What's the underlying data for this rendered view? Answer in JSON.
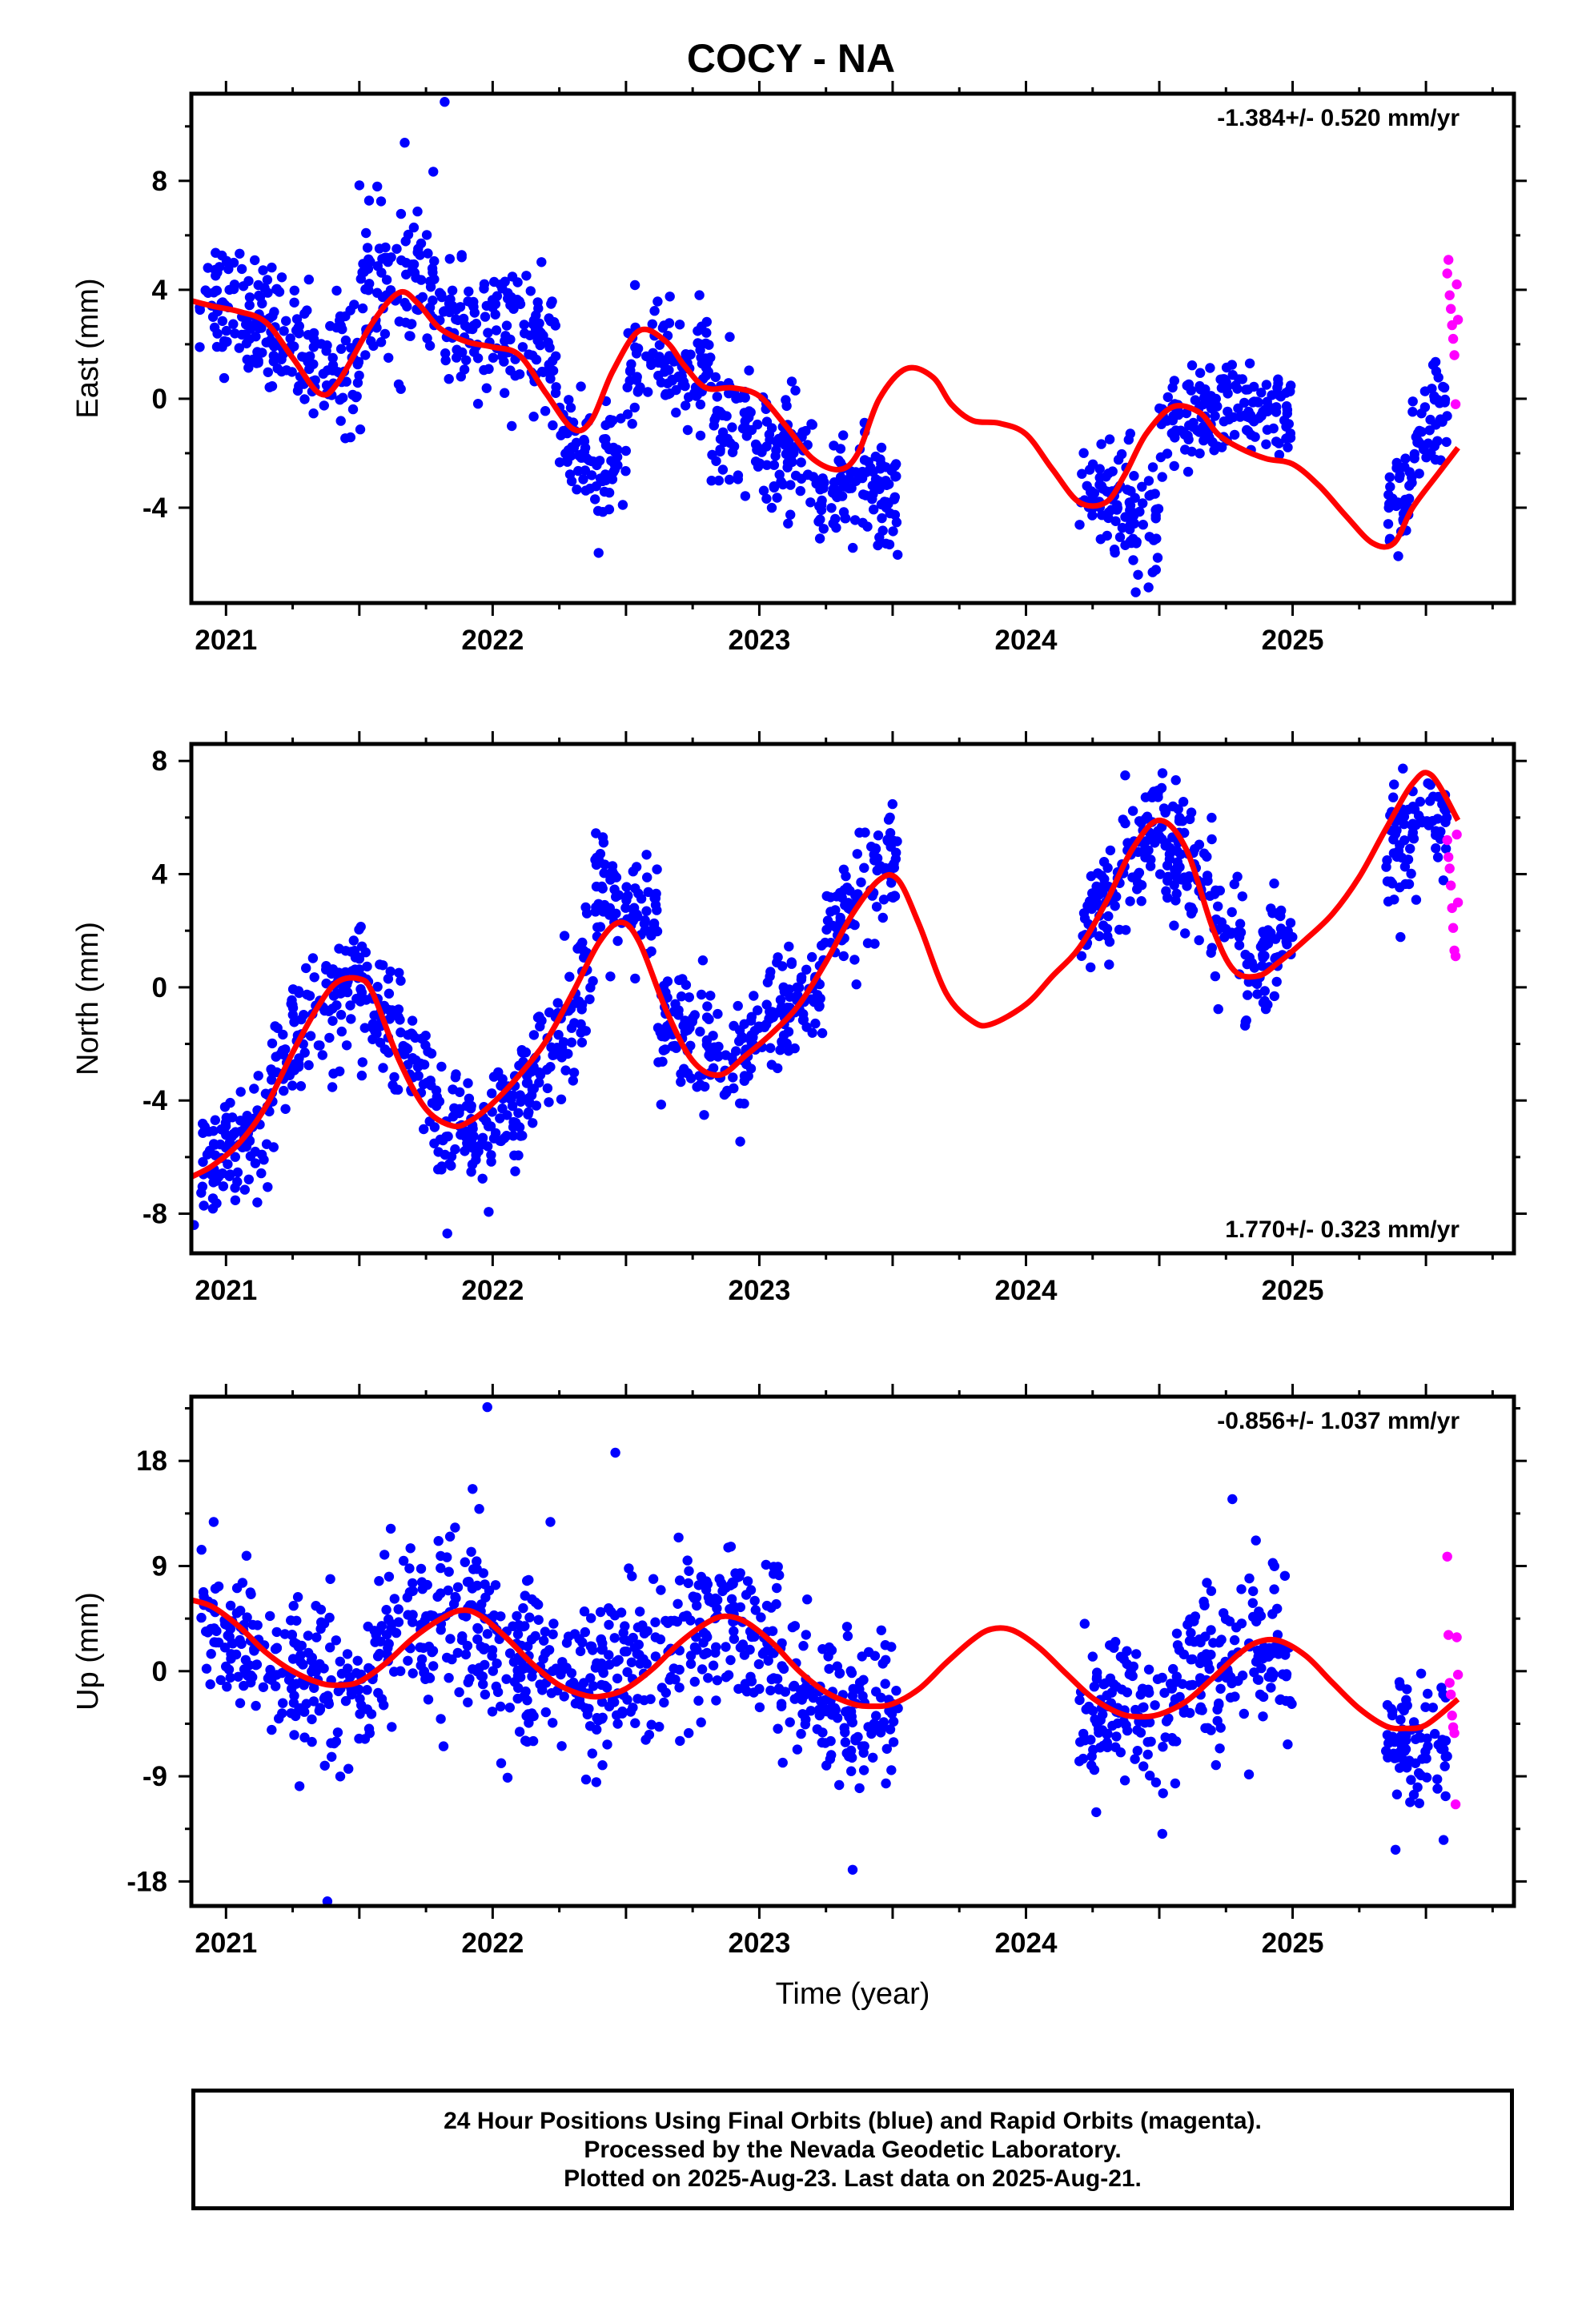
{
  "title": "COCY - NA",
  "colors": {
    "final": "#0000ff",
    "rapid": "#ff00ff",
    "model": "#ff0000",
    "axis": "#000000"
  },
  "chart_data": [
    {
      "type": "scatter",
      "name": "east",
      "ylabel": "East (mm)",
      "xlabel": "",
      "xticks": [
        "2021",
        "2022",
        "2023",
        "2024",
        "2025"
      ],
      "yticks": [
        -4,
        0,
        4,
        8
      ],
      "xlim": [
        2020.87,
        2025.83
      ],
      "ylim": [
        -7.5,
        11.2
      ],
      "rate_label": "-1.384+/- 0.520 mm/yr",
      "rate_position": "top-right",
      "model_fit": {
        "x": [
          2020.87,
          2020.95,
          2021.05,
          2021.15,
          2021.25,
          2021.35,
          2021.42,
          2021.55,
          2021.65,
          2021.72,
          2021.8,
          2021.9,
          2022.0,
          2022.1,
          2022.2,
          2022.3,
          2022.37,
          2022.45,
          2022.55,
          2022.65,
          2022.72,
          2022.8,
          2022.9,
          2023.0,
          2023.1,
          2023.2,
          2023.3,
          2023.37,
          2023.45,
          2023.55,
          2023.65,
          2023.72,
          2023.8,
          2023.9,
          2024.0,
          2024.1,
          2024.2,
          2024.3,
          2024.37,
          2024.45,
          2024.55,
          2024.65,
          2024.72,
          2024.8,
          2024.9,
          2025.0,
          2025.1,
          2025.2,
          2025.3,
          2025.38,
          2025.45,
          2025.55,
          2025.62
        ],
        "y": [
          3.6,
          3.4,
          3.2,
          2.8,
          1.5,
          0.2,
          0.6,
          2.8,
          3.9,
          3.5,
          2.6,
          2.1,
          1.9,
          1.6,
          0.2,
          -1.1,
          -0.8,
          1.0,
          2.5,
          2.1,
          1.2,
          0.4,
          0.4,
          0.1,
          -1.0,
          -2.2,
          -2.6,
          -2.0,
          0.0,
          1.1,
          0.8,
          -0.2,
          -0.8,
          -0.9,
          -1.3,
          -2.6,
          -3.8,
          -3.8,
          -2.8,
          -1.3,
          -0.3,
          -0.5,
          -1.3,
          -1.8,
          -2.2,
          -2.4,
          -3.2,
          -4.3,
          -5.3,
          -5.3,
          -4.0,
          -2.7,
          -1.8
        ]
      },
      "segments": [
        {
          "x0": 2020.9,
          "x1": 2021.17,
          "base": [
            3.7,
            2.9
          ],
          "spread": 1.3
        },
        {
          "x0": 2021.17,
          "x1": 2021.5,
          "base": [
            2.3,
            1.1
          ],
          "spread": 1.4
        },
        {
          "x0": 2021.5,
          "x1": 2021.8,
          "base": [
            3.9,
            4.2
          ],
          "spread": 1.7
        },
        {
          "x0": 2021.8,
          "x1": 2022.25,
          "base": [
            2.8,
            1.8
          ],
          "spread": 1.3
        },
        {
          "x0": 2022.25,
          "x1": 2022.5,
          "base": [
            -1.8,
            -2.6
          ],
          "spread": 1.4
        },
        {
          "x0": 2022.5,
          "x1": 2022.82,
          "base": [
            1.0,
            1.4
          ],
          "spread": 1.2
        },
        {
          "x0": 2022.82,
          "x1": 2023.2,
          "base": [
            -1.0,
            -2.2
          ],
          "spread": 1.3
        },
        {
          "x0": 2023.2,
          "x1": 2023.52,
          "base": [
            -3.3,
            -3.6
          ],
          "spread": 1.2
        },
        {
          "x0": 2024.2,
          "x1": 2024.5,
          "base": [
            -3.6,
            -4.1
          ],
          "spread": 1.3
        },
        {
          "x0": 2024.5,
          "x1": 2024.82,
          "base": [
            -1.2,
            -0.3
          ],
          "spread": 1.1
        },
        {
          "x0": 2024.82,
          "x1": 2025.0,
          "base": [
            -0.3,
            -0.6
          ],
          "spread": 0.9
        },
        {
          "x0": 2025.35,
          "x1": 2025.44,
          "base": [
            -4.5,
            -3.4
          ],
          "spread": 1.2
        },
        {
          "x0": 2025.44,
          "x1": 2025.58,
          "base": [
            -2.0,
            -0.5
          ],
          "spread": 1.2
        }
      ],
      "rapid": {
        "x0": 2025.58,
        "x1": 2025.62,
        "values": [
          4.6,
          5.1,
          3.8,
          3.3,
          2.7,
          2.2,
          1.6,
          -0.2,
          4.2,
          2.9
        ]
      },
      "outliers": {
        "x": [
          2021.82,
          2021.67
        ],
        "y": [
          10.9,
          9.4
        ]
      }
    },
    {
      "type": "scatter",
      "name": "north",
      "ylabel": "North (mm)",
      "xlabel": "",
      "xticks": [
        "2021",
        "2022",
        "2023",
        "2024",
        "2025"
      ],
      "yticks": [
        -8,
        -4,
        0,
        4,
        8
      ],
      "xlim": [
        2020.87,
        2025.83
      ],
      "ylim": [
        -9.4,
        8.6
      ],
      "rate_label": "1.770+/- 0.323 mm/yr",
      "rate_position": "bottom-right",
      "model_fit": {
        "x": [
          2020.87,
          2020.95,
          2021.05,
          2021.15,
          2021.25,
          2021.35,
          2021.42,
          2021.5,
          2021.55,
          2021.65,
          2021.75,
          2021.85,
          2021.92,
          2022.0,
          2022.1,
          2022.2,
          2022.3,
          2022.4,
          2022.48,
          2022.55,
          2022.65,
          2022.75,
          2022.85,
          2022.95,
          2023.05,
          2023.15,
          2023.25,
          2023.35,
          2023.45,
          2023.52,
          2023.6,
          2023.7,
          2023.8,
          2023.87,
          2024.0,
          2024.1,
          2024.2,
          2024.3,
          2024.4,
          2024.5,
          2024.6,
          2024.7,
          2024.78,
          2024.87,
          2024.95,
          2025.05,
          2025.15,
          2025.25,
          2025.35,
          2025.45,
          2025.52,
          2025.62
        ],
        "y": [
          -6.7,
          -6.3,
          -5.5,
          -4.2,
          -2.3,
          -0.6,
          0.2,
          0.3,
          -0.2,
          -2.6,
          -4.3,
          -4.9,
          -4.7,
          -4.1,
          -3.1,
          -1.9,
          -0.2,
          1.6,
          2.3,
          1.6,
          -0.8,
          -2.6,
          -3.1,
          -2.4,
          -1.6,
          -0.6,
          0.9,
          2.6,
          3.8,
          3.8,
          2.2,
          -0.2,
          -1.2,
          -1.3,
          -0.6,
          0.4,
          1.4,
          3.0,
          4.9,
          5.9,
          4.9,
          2.1,
          0.6,
          0.4,
          0.9,
          1.7,
          2.6,
          3.9,
          5.6,
          7.2,
          7.5,
          5.9
        ]
      },
      "segments": [
        {
          "x0": 2020.9,
          "x1": 2021.17,
          "base": [
            -6.2,
            -4.9
          ],
          "spread": 1.1
        },
        {
          "x0": 2021.17,
          "x1": 2021.5,
          "base": [
            -3.2,
            0.5
          ],
          "spread": 1.3
        },
        {
          "x0": 2021.5,
          "x1": 2021.78,
          "base": [
            0.4,
            -3.4
          ],
          "spread": 1.2
        },
        {
          "x0": 2021.78,
          "x1": 2022.1,
          "base": [
            -5.2,
            -4.8
          ],
          "spread": 1.2
        },
        {
          "x0": 2022.1,
          "x1": 2022.38,
          "base": [
            -3.6,
            0.4
          ],
          "spread": 1.3
        },
        {
          "x0": 2022.38,
          "x1": 2022.62,
          "base": [
            3.5,
            2.0
          ],
          "spread": 1.3
        },
        {
          "x0": 2022.62,
          "x1": 2022.95,
          "base": [
            -1.2,
            -2.8
          ],
          "spread": 1.4
        },
        {
          "x0": 2022.95,
          "x1": 2023.25,
          "base": [
            -2.0,
            0.3
          ],
          "spread": 1.2
        },
        {
          "x0": 2023.25,
          "x1": 2023.52,
          "base": [
            1.9,
            4.3
          ],
          "spread": 1.1
        },
        {
          "x0": 2024.2,
          "x1": 2024.5,
          "base": [
            1.5,
            5.9
          ],
          "spread": 1.3
        },
        {
          "x0": 2024.5,
          "x1": 2024.82,
          "base": [
            5.8,
            1.6
          ],
          "spread": 1.3
        },
        {
          "x0": 2024.82,
          "x1": 2025.0,
          "base": [
            0.4,
            1.9
          ],
          "spread": 1.1
        },
        {
          "x0": 2025.35,
          "x1": 2025.58,
          "base": [
            4.8,
            6.6
          ],
          "spread": 1.2
        }
      ],
      "rapid": {
        "x0": 2025.58,
        "x1": 2025.62,
        "values": [
          5.2,
          4.6,
          4.2,
          3.6,
          2.8,
          2.1,
          1.3,
          1.1,
          5.4,
          3.0
        ]
      },
      "outliers": {
        "x": [
          2020.88,
          2021.83
        ],
        "y": [
          -8.4,
          -8.7
        ]
      }
    },
    {
      "type": "scatter",
      "name": "up",
      "ylabel": "Up (mm)",
      "xlabel": "Time (year)",
      "xticks": [
        "2021",
        "2022",
        "2023",
        "2024",
        "2025"
      ],
      "yticks": [
        -18,
        -9,
        0,
        9,
        18
      ],
      "xlim": [
        2020.87,
        2025.83
      ],
      "ylim": [
        -20.1,
        23.5
      ],
      "rate_label": "-0.856+/- 1.037 mm/yr",
      "rate_position": "top-right",
      "model_fit": {
        "x": [
          2020.87,
          2020.95,
          2021.05,
          2021.15,
          2021.25,
          2021.35,
          2021.42,
          2021.5,
          2021.6,
          2021.7,
          2021.8,
          2021.88,
          2021.95,
          2022.05,
          2022.15,
          2022.25,
          2022.35,
          2022.42,
          2022.5,
          2022.6,
          2022.7,
          2022.8,
          2022.87,
          2022.95,
          2023.05,
          2023.15,
          2023.25,
          2023.35,
          2023.42,
          2023.5,
          2023.6,
          2023.7,
          2023.8,
          2023.87,
          2023.95,
          2024.05,
          2024.15,
          2024.25,
          2024.35,
          2024.42,
          2024.5,
          2024.6,
          2024.7,
          2024.8,
          2024.87,
          2024.95,
          2025.05,
          2025.15,
          2025.25,
          2025.35,
          2025.42,
          2025.5,
          2025.62
        ],
        "y": [
          6.1,
          5.5,
          3.8,
          1.6,
          0.0,
          -1.0,
          -1.2,
          -0.9,
          0.7,
          2.8,
          4.4,
          5.2,
          4.8,
          2.9,
          0.6,
          -1.2,
          -2.1,
          -2.1,
          -1.5,
          0.2,
          2.4,
          4.1,
          4.7,
          4.2,
          2.4,
          0.0,
          -1.8,
          -2.8,
          -3.0,
          -2.8,
          -1.5,
          0.7,
          2.7,
          3.6,
          3.5,
          2.0,
          -0.2,
          -2.3,
          -3.6,
          -3.9,
          -3.7,
          -2.6,
          -0.6,
          1.5,
          2.5,
          2.6,
          1.3,
          -1.0,
          -3.2,
          -4.7,
          -4.9,
          -4.6,
          -2.4
        ]
      },
      "segments": [
        {
          "x0": 2020.9,
          "x1": 2021.17,
          "base": [
            5.2,
            1.2
          ],
          "spread": 3.6
        },
        {
          "x0": 2021.17,
          "x1": 2021.55,
          "base": [
            -0.6,
            -1.4
          ],
          "spread": 4.0
        },
        {
          "x0": 2021.55,
          "x1": 2021.95,
          "base": [
            2.5,
            6.0
          ],
          "spread": 4.4
        },
        {
          "x0": 2021.95,
          "x1": 2022.4,
          "base": [
            2.0,
            -1.8
          ],
          "spread": 4.3
        },
        {
          "x0": 2022.4,
          "x1": 2022.9,
          "base": [
            -0.4,
            4.6
          ],
          "spread": 4.2
        },
        {
          "x0": 2022.9,
          "x1": 2023.2,
          "base": [
            3.8,
            -1.4
          ],
          "spread": 4.0
        },
        {
          "x0": 2023.2,
          "x1": 2023.52,
          "base": [
            -3.6,
            -3.8
          ],
          "spread": 3.8
        },
        {
          "x0": 2024.2,
          "x1": 2024.55,
          "base": [
            -3.6,
            -3.4
          ],
          "spread": 4.0
        },
        {
          "x0": 2024.55,
          "x1": 2024.9,
          "base": [
            -1.6,
            2.8
          ],
          "spread": 4.2
        },
        {
          "x0": 2024.9,
          "x1": 2025.0,
          "base": [
            2.4,
            -1.2
          ],
          "spread": 3.8
        },
        {
          "x0": 2025.35,
          "x1": 2025.58,
          "base": [
            -5.4,
            -7.5
          ],
          "spread": 3.6
        }
      ],
      "rapid": {
        "x0": 2025.58,
        "x1": 2025.62,
        "values": [
          9.8,
          3.1,
          -1.0,
          -2.0,
          -3.8,
          -4.8,
          -5.3,
          -11.4,
          2.9,
          -0.3
        ]
      },
      "outliers": {
        "x": [
          2021.98,
          2022.46,
          2021.38,
          2023.35
        ],
        "y": [
          22.6,
          18.7,
          -19.7,
          -17.0
        ]
      }
    }
  ],
  "footer": {
    "line1": "24 Hour Positions Using Final Orbits (blue) and Rapid Orbits (magenta).",
    "line2": "Processed by the Nevada Geodetic Laboratory.",
    "line3": "Plotted on 2025-Aug-23. Last data on 2025-Aug-21."
  }
}
